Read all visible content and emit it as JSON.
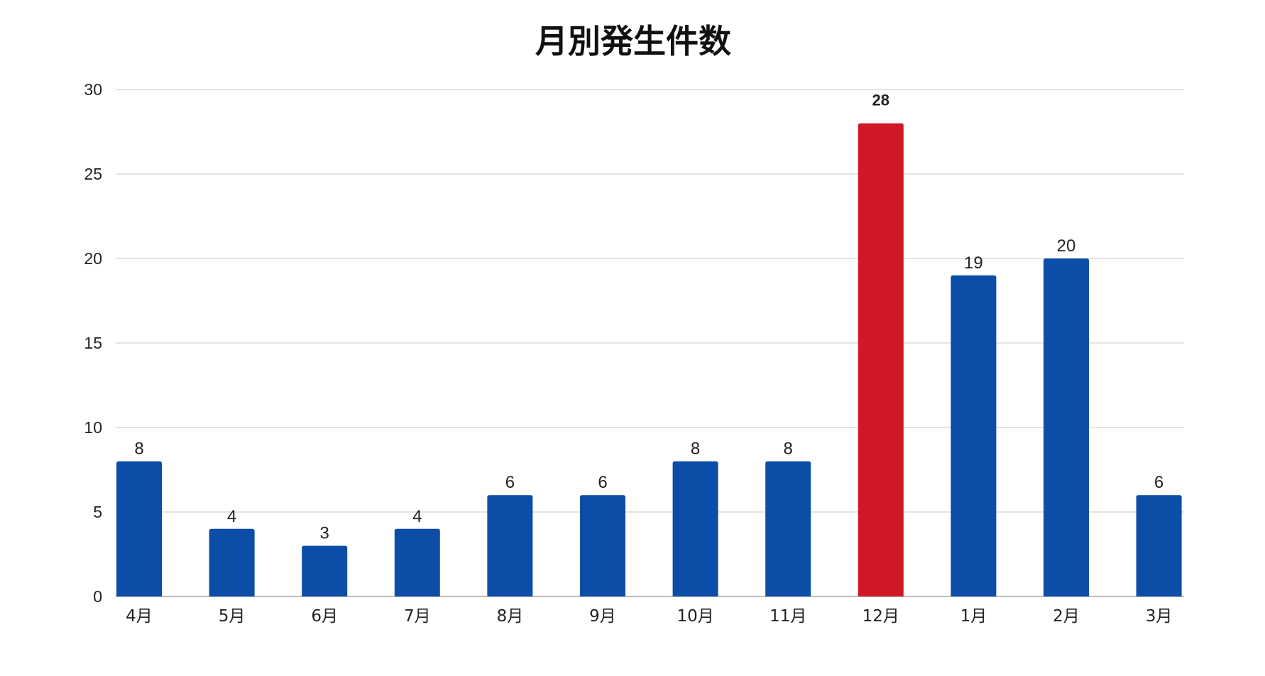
{
  "chart_data": {
    "type": "bar",
    "title": "月別発生件数",
    "xlabel": "",
    "ylabel": "",
    "categories": [
      "4月",
      "5月",
      "6月",
      "7月",
      "8月",
      "9月",
      "10月",
      "11月",
      "12月",
      "1月",
      "2月",
      "3月"
    ],
    "values": [
      8,
      4,
      3,
      4,
      6,
      6,
      8,
      8,
      28,
      19,
      20,
      6
    ],
    "highlight_index": 8,
    "ylim": [
      0,
      30
    ],
    "yticks": [
      0,
      5,
      10,
      15,
      20,
      25,
      30
    ],
    "grid": true,
    "legend": "none",
    "colors": {
      "bar": "#0c4da8",
      "highlight": "#d01826",
      "highlight_label": "#c0182a",
      "grid": "#dcdcdc",
      "axis": "#bdbdbd"
    }
  }
}
